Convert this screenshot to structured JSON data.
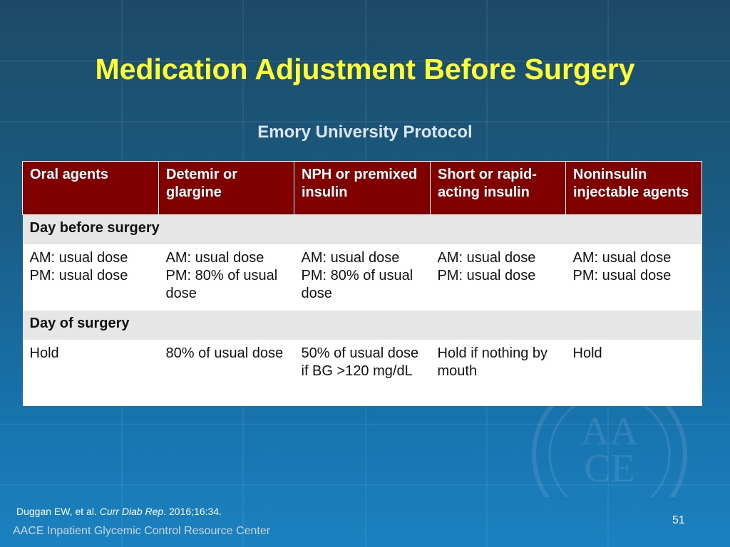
{
  "slide": {
    "title": "Medication Adjustment Before Surgery",
    "subtitle": "Emory University Protocol",
    "page_number": "51"
  },
  "table": {
    "headers": [
      "Oral agents",
      "Detemir or glargine",
      "NPH or premixed insulin",
      "Short or rapid-acting insulin",
      "Noninsulin injectable agents"
    ],
    "sections": [
      {
        "label": "Day before surgery",
        "cells": [
          [
            "AM: usual dose",
            "PM: usual dose"
          ],
          [
            "AM: usual dose",
            "PM: 80% of usual dose"
          ],
          [
            "AM: usual dose",
            "PM: 80% of usual dose"
          ],
          [
            "AM: usual dose",
            "PM: usual dose"
          ],
          [
            "AM: usual dose",
            "PM: usual dose"
          ]
        ]
      },
      {
        "label": "Day of surgery",
        "cells": [
          [
            "Hold"
          ],
          [
            "80% of usual dose"
          ],
          [
            "50% of usual dose if BG >120 mg/dL"
          ],
          [
            "Hold if nothing by mouth"
          ],
          [
            "Hold"
          ]
        ]
      }
    ]
  },
  "citation": {
    "authors": "Duggan EW, et al. ",
    "journal": "Curr Diab Rep",
    "details": ". 2016;16:34."
  },
  "footer": {
    "brand": "AACE Inpatient Glycemic Control Resource Center"
  },
  "colors": {
    "title": "#ffff33",
    "header_bg": "#800000",
    "section_bg": "#e6e6e6"
  }
}
